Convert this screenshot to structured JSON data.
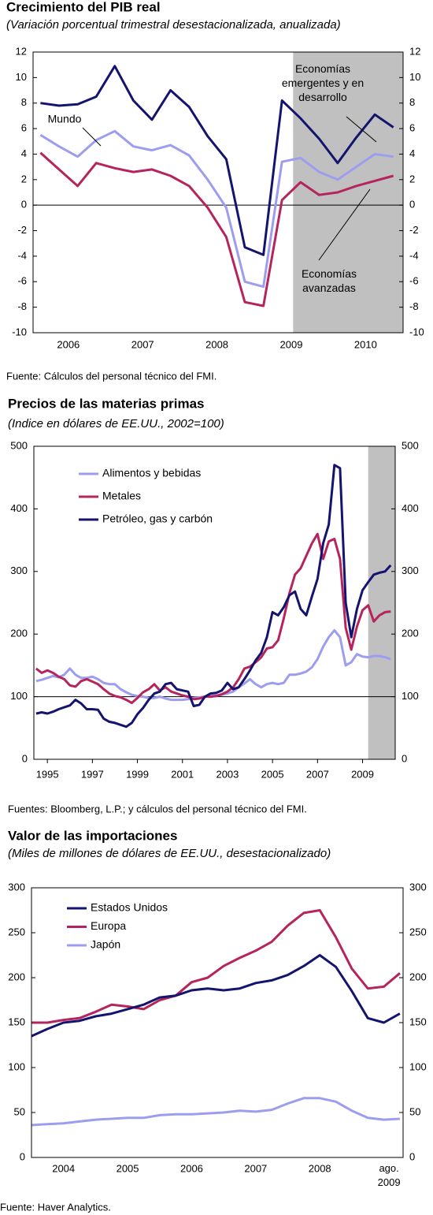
{
  "chart_data": [
    {
      "type": "line",
      "title": "Crecimiento del PIB real",
      "subtitle": "(Variación porcentual trimestral desestacionalizada, anualizada)",
      "x": [
        2006,
        2006.25,
        2006.5,
        2006.75,
        2007,
        2007.25,
        2007.5,
        2007.75,
        2008,
        2008.25,
        2008.5,
        2008.75,
        2009,
        2009.25,
        2009.5,
        2009.75,
        2010,
        2010.25,
        2010.5,
        2010.75
      ],
      "series": [
        {
          "name": "Mundo",
          "color": "#9d9df0",
          "values": [
            5.5,
            4.6,
            3.8,
            5.1,
            5.8,
            4.6,
            4.3,
            4.7,
            3.9,
            2.0,
            -0.2,
            -6.0,
            -6.4,
            3.4,
            3.7,
            2.6,
            2.0,
            3.0,
            4.0,
            3.8
          ]
        },
        {
          "name": "Economías\navanzadas",
          "color": "#b5245c",
          "values": [
            4.1,
            2.8,
            1.5,
            3.3,
            2.9,
            2.6,
            2.8,
            2.3,
            1.5,
            -0.2,
            -2.5,
            -7.6,
            -7.9,
            0.4,
            1.8,
            0.8,
            1.0,
            1.5,
            1.9,
            2.3
          ]
        },
        {
          "name": "Economías\nemergentes y en\ndesarrollo",
          "color": "#14146e",
          "values": [
            8.0,
            7.8,
            7.9,
            8.5,
            10.9,
            8.2,
            6.7,
            9.0,
            7.7,
            5.4,
            3.6,
            -3.3,
            -3.9,
            8.2,
            6.8,
            5.2,
            3.3,
            5.3,
            7.1,
            6.1
          ]
        }
      ],
      "xlim": [
        2005.9,
        2010.88
      ],
      "xticks": [
        {
          "value": 2006.375,
          "label": "2006"
        },
        {
          "value": 2007.375,
          "label": "2007"
        },
        {
          "value": 2008.375,
          "label": "2008"
        },
        {
          "value": 2009.375,
          "label": "2009"
        },
        {
          "value": 2010.375,
          "label": "2010"
        }
      ],
      "ylim": [
        -10,
        12
      ],
      "yticks": [
        -10,
        -8,
        -6,
        -4,
        -2,
        0,
        2,
        4,
        6,
        8,
        10,
        12
      ],
      "y2lim": [
        -10,
        12
      ],
      "y2ticks": [
        -10,
        -8,
        -6,
        -4,
        -2,
        0,
        2,
        4,
        6,
        8,
        10,
        12
      ],
      "reference_line": 0,
      "shaded_from": 2009.4,
      "shade_color": "#c0c0c0",
      "source": "Fuente: Cálculos del personal técnico del FMI."
    },
    {
      "type": "line",
      "title": "Precios de las materias primas",
      "subtitle": "(Indice en dólares de EE.UU., 2002=100)",
      "x": [
        1994.5,
        1994.75,
        1995,
        1995.25,
        1995.5,
        1995.75,
        1996,
        1996.25,
        1996.5,
        1996.75,
        1997,
        1997.25,
        1997.5,
        1997.75,
        1998,
        1998.25,
        1998.5,
        1998.75,
        1999,
        1999.25,
        1999.5,
        1999.75,
        2000,
        2000.25,
        2000.5,
        2000.75,
        2001,
        2001.25,
        2001.5,
        2001.75,
        2002,
        2002.25,
        2002.5,
        2002.75,
        2003,
        2003.25,
        2003.5,
        2003.75,
        2004,
        2004.25,
        2004.5,
        2004.75,
        2005,
        2005.25,
        2005.5,
        2005.75,
        2006,
        2006.25,
        2006.5,
        2006.75,
        2007,
        2007.25,
        2007.5,
        2007.75,
        2008,
        2008.25,
        2008.5,
        2008.75,
        2009,
        2009.25,
        2009.5,
        2009.75,
        2010,
        2010.25
      ],
      "series": [
        {
          "name": "Alimentos y bebidas",
          "color": "#9d9df0",
          "values": [
            125,
            127,
            130,
            133,
            131,
            135,
            145,
            135,
            130,
            130,
            132,
            128,
            122,
            120,
            120,
            112,
            107,
            103,
            101,
            100,
            98,
            98,
            100,
            97,
            95,
            95,
            95,
            96,
            98,
            99,
            100,
            101,
            102,
            103,
            105,
            108,
            115,
            121,
            128,
            120,
            115,
            120,
            122,
            120,
            122,
            135,
            135,
            137,
            140,
            147,
            160,
            180,
            195,
            206,
            195,
            150,
            155,
            168,
            164,
            163,
            165,
            165,
            163,
            160
          ]
        },
        {
          "name": "Metales",
          "color": "#b5245c",
          "values": [
            145,
            138,
            142,
            138,
            132,
            128,
            118,
            116,
            125,
            128,
            124,
            120,
            112,
            105,
            101,
            99,
            95,
            90,
            98,
            107,
            112,
            120,
            110,
            115,
            108,
            105,
            102,
            100,
            96,
            97,
            100,
            100,
            101,
            104,
            108,
            115,
            128,
            145,
            148,
            155,
            163,
            177,
            179,
            190,
            225,
            265,
            295,
            305,
            325,
            345,
            360,
            320,
            348,
            352,
            320,
            210,
            175,
            212,
            238,
            246,
            220,
            230,
            235,
            236
          ]
        },
        {
          "name": "Petróleo, gas y carbón",
          "color": "#14146e",
          "values": [
            73,
            75,
            73,
            76,
            80,
            83,
            86,
            95,
            89,
            80,
            80,
            79,
            65,
            60,
            58,
            55,
            52,
            58,
            72,
            82,
            95,
            105,
            108,
            120,
            122,
            112,
            110,
            108,
            85,
            87,
            100,
            105,
            106,
            110,
            122,
            112,
            115,
            128,
            142,
            158,
            170,
            195,
            235,
            230,
            243,
            262,
            268,
            240,
            230,
            260,
            288,
            345,
            375,
            470,
            465,
            250,
            195,
            240,
            270,
            283,
            295,
            298,
            300,
            310
          ]
        }
      ],
      "xlim": [
        1994.4,
        2010.45
      ],
      "xticks": [
        1995,
        1997,
        1999,
        2001,
        2003,
        2005,
        2007,
        2009
      ],
      "ylim": [
        0,
        500
      ],
      "yticks": [
        0,
        100,
        200,
        300,
        400,
        500
      ],
      "y2lim": [
        0,
        500
      ],
      "y2ticks": [
        0,
        100,
        200,
        300,
        400,
        500
      ],
      "reference_line": 100,
      "shaded_from": 2009.25,
      "shade_color": "#c0c0c0",
      "legend": "upper left",
      "source": "Fuentes: Bloomberg, L.P.; y cálculos del personal técnico del FMI."
    },
    {
      "type": "line",
      "title": "Valor de las importaciones",
      "subtitle": "(Miles de millones de dólares de EE.UU., desestacionalizado)",
      "x": [
        2004,
        2004.25,
        2004.5,
        2004.75,
        2005,
        2005.25,
        2005.5,
        2005.75,
        2006,
        2006.25,
        2006.5,
        2006.75,
        2007,
        2007.25,
        2007.5,
        2007.75,
        2008,
        2008.25,
        2008.5,
        2008.75,
        2009,
        2009.25,
        2009.5,
        2009.75
      ],
      "series": [
        {
          "name": "Estados Unidos",
          "color": "#14146e",
          "values": [
            135,
            143,
            150,
            152,
            157,
            160,
            165,
            170,
            178,
            180,
            186,
            188,
            186,
            188,
            194,
            197,
            203,
            213,
            225,
            212,
            185,
            155,
            150,
            160
          ]
        },
        {
          "name": "Europa",
          "color": "#b5245c",
          "values": [
            150,
            150,
            153,
            155,
            162,
            170,
            168,
            165,
            175,
            180,
            195,
            200,
            213,
            222,
            230,
            240,
            258,
            272,
            275,
            245,
            210,
            188,
            190,
            205
          ]
        },
        {
          "name": "Japón",
          "color": "#9d9df0",
          "values": [
            36,
            37,
            38,
            40,
            42,
            43,
            44,
            44,
            47,
            48,
            48,
            49,
            50,
            52,
            51,
            53,
            60,
            66,
            66,
            62,
            52,
            44,
            42,
            43
          ]
        }
      ],
      "xlim": [
        2004,
        2009.8
      ],
      "xticks": [
        {
          "value": 2004.5,
          "label": "2004"
        },
        {
          "value": 2005.5,
          "label": "2005"
        },
        {
          "value": 2006.5,
          "label": "2006"
        },
        {
          "value": 2007.5,
          "label": "2007"
        },
        {
          "value": 2008.5,
          "label": "2008"
        },
        {
          "value": 2009.58,
          "label": "ago.\n2009"
        }
      ],
      "ylim": [
        0,
        300
      ],
      "yticks": [
        0,
        50,
        100,
        150,
        200,
        250,
        300
      ],
      "y2lim": [
        0,
        300
      ],
      "y2ticks": [
        0,
        50,
        100,
        150,
        200,
        250,
        300
      ],
      "legend": "upper left",
      "source": "Fuente: Haver Analytics."
    }
  ]
}
